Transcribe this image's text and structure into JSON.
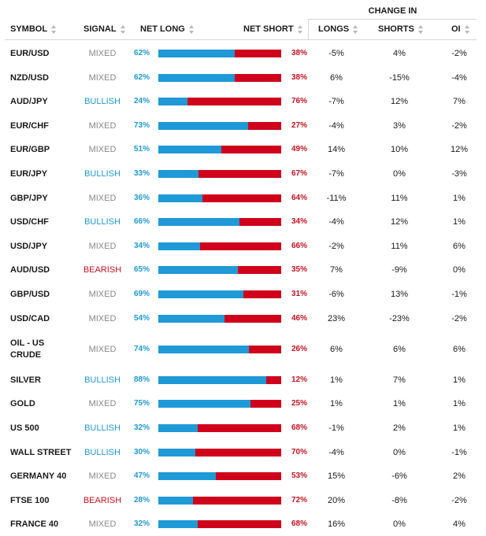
{
  "header": {
    "change_in": "CHANGE IN",
    "symbol": "SYMBOL",
    "signal": "SIGNAL",
    "net_long": "NET LONG",
    "net_short": "NET SHORT",
    "longs": "LONGS",
    "shorts": "SHORTS",
    "oi": "OI"
  },
  "colors": {
    "long": "#1f9ad6",
    "short": "#d0021b",
    "mixed": "#888888"
  },
  "rows": [
    {
      "symbol": "EUR/USD",
      "signal": "MIXED",
      "net_long": "62%",
      "net_long_pct": 62,
      "net_short": "38%",
      "longs": "-5%",
      "shorts": "4%",
      "oi": "-2%"
    },
    {
      "symbol": "NZD/USD",
      "signal": "MIXED",
      "net_long": "62%",
      "net_long_pct": 62,
      "net_short": "38%",
      "longs": "6%",
      "shorts": "-15%",
      "oi": "-4%"
    },
    {
      "symbol": "AUD/JPY",
      "signal": "BULLISH",
      "net_long": "24%",
      "net_long_pct": 24,
      "net_short": "76%",
      "longs": "-7%",
      "shorts": "12%",
      "oi": "7%"
    },
    {
      "symbol": "EUR/CHF",
      "signal": "MIXED",
      "net_long": "73%",
      "net_long_pct": 73,
      "net_short": "27%",
      "longs": "-4%",
      "shorts": "3%",
      "oi": "-2%"
    },
    {
      "symbol": "EUR/GBP",
      "signal": "MIXED",
      "net_long": "51%",
      "net_long_pct": 51,
      "net_short": "49%",
      "longs": "14%",
      "shorts": "10%",
      "oi": "12%"
    },
    {
      "symbol": "EUR/JPY",
      "signal": "BULLISH",
      "net_long": "33%",
      "net_long_pct": 33,
      "net_short": "67%",
      "longs": "-7%",
      "shorts": "0%",
      "oi": "-3%"
    },
    {
      "symbol": "GBP/JPY",
      "signal": "MIXED",
      "net_long": "36%",
      "net_long_pct": 36,
      "net_short": "64%",
      "longs": "-11%",
      "shorts": "11%",
      "oi": "1%"
    },
    {
      "symbol": "USD/CHF",
      "signal": "BULLISH",
      "net_long": "66%",
      "net_long_pct": 66,
      "net_short": "34%",
      "longs": "-4%",
      "shorts": "12%",
      "oi": "1%"
    },
    {
      "symbol": "USD/JPY",
      "signal": "MIXED",
      "net_long": "34%",
      "net_long_pct": 34,
      "net_short": "66%",
      "longs": "-2%",
      "shorts": "11%",
      "oi": "6%"
    },
    {
      "symbol": "AUD/USD",
      "signal": "BEARISH",
      "net_long": "65%",
      "net_long_pct": 65,
      "net_short": "35%",
      "longs": "7%",
      "shorts": "-9%",
      "oi": "0%"
    },
    {
      "symbol": "GBP/USD",
      "signal": "MIXED",
      "net_long": "69%",
      "net_long_pct": 69,
      "net_short": "31%",
      "longs": "-6%",
      "shorts": "13%",
      "oi": "-1%"
    },
    {
      "symbol": "USD/CAD",
      "signal": "MIXED",
      "net_long": "54%",
      "net_long_pct": 54,
      "net_short": "46%",
      "longs": "23%",
      "shorts": "-23%",
      "oi": "-2%"
    },
    {
      "symbol": "OIL - US CRUDE",
      "signal": "MIXED",
      "net_long": "74%",
      "net_long_pct": 74,
      "net_short": "26%",
      "longs": "6%",
      "shorts": "6%",
      "oi": "6%"
    },
    {
      "symbol": "SILVER",
      "signal": "BULLISH",
      "net_long": "88%",
      "net_long_pct": 88,
      "net_short": "12%",
      "longs": "1%",
      "shorts": "7%",
      "oi": "1%"
    },
    {
      "symbol": "GOLD",
      "signal": "MIXED",
      "net_long": "75%",
      "net_long_pct": 75,
      "net_short": "25%",
      "longs": "1%",
      "shorts": "1%",
      "oi": "1%"
    },
    {
      "symbol": "US 500",
      "signal": "BULLISH",
      "net_long": "32%",
      "net_long_pct": 32,
      "net_short": "68%",
      "longs": "-1%",
      "shorts": "2%",
      "oi": "1%"
    },
    {
      "symbol": "WALL STREET",
      "signal": "BULLISH",
      "net_long": "30%",
      "net_long_pct": 30,
      "net_short": "70%",
      "longs": "-4%",
      "shorts": "0%",
      "oi": "-1%"
    },
    {
      "symbol": "GERMANY 40",
      "signal": "MIXED",
      "net_long": "47%",
      "net_long_pct": 47,
      "net_short": "53%",
      "longs": "15%",
      "shorts": "-6%",
      "oi": "2%"
    },
    {
      "symbol": "FTSE 100",
      "signal": "BEARISH",
      "net_long": "28%",
      "net_long_pct": 28,
      "net_short": "72%",
      "longs": "20%",
      "shorts": "-8%",
      "oi": "-2%"
    },
    {
      "symbol": "FRANCE 40",
      "signal": "MIXED",
      "net_long": "32%",
      "net_long_pct": 32,
      "net_short": "68%",
      "longs": "16%",
      "shorts": "0%",
      "oi": "4%"
    }
  ]
}
